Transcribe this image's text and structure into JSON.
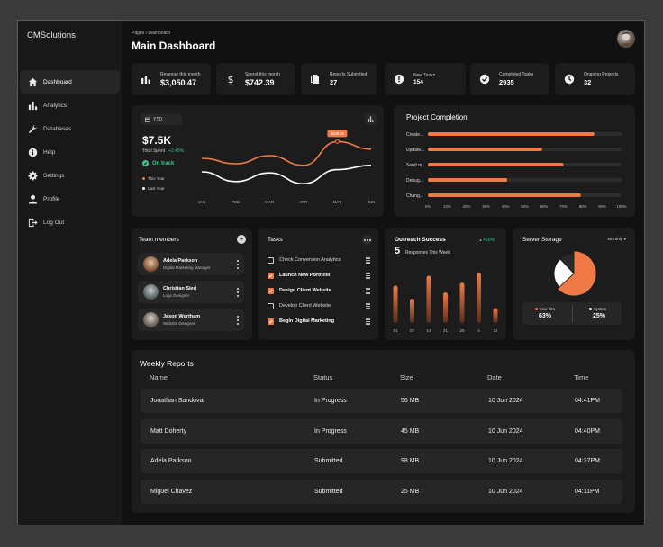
{
  "brand": "CMSolutions",
  "breadcrumb": "Pages / Dashboard",
  "page_title": "Main Dashboard",
  "nav": [
    {
      "label": "Dashboard",
      "icon": "home-icon"
    },
    {
      "label": "Analytics",
      "icon": "bar-chart-icon"
    },
    {
      "label": "Databases",
      "icon": "wrench-icon"
    },
    {
      "label": "Help",
      "icon": "info-icon"
    },
    {
      "label": "Settings",
      "icon": "gear-icon"
    },
    {
      "label": "Profile",
      "icon": "user-icon"
    },
    {
      "label": "Log Out",
      "icon": "logout-icon"
    }
  ],
  "stats": [
    {
      "label": "Revenue this month",
      "value": "$3,050.47",
      "icon": "bar-chart-icon"
    },
    {
      "label": "Spend this month",
      "value": "$742.39",
      "icon": "dollar-icon"
    },
    {
      "label": "Reports Submitted",
      "value": "27",
      "icon": "document-icon"
    },
    {
      "label": "New Tasks",
      "value": "154",
      "icon": "alert-icon"
    },
    {
      "label": "Completed Tasks",
      "value": "2935",
      "icon": "check-circle-icon"
    },
    {
      "label": "Ongoing Projects",
      "value": "32",
      "icon": "clock-icon"
    }
  ],
  "spend_chart": {
    "period": "YTD",
    "value": "$7.5K",
    "label": "Total Spent",
    "change": "+2.45%",
    "status": "On track",
    "legend": [
      "This Year",
      "Last Year"
    ],
    "tooltip": "$108.00",
    "colors": {
      "this_year": "#f07a47",
      "last_year": "#ffffff"
    }
  },
  "chart_data": [
    {
      "type": "line",
      "title": "",
      "categories": [
        "JAN",
        "FEB",
        "MAR",
        "APR",
        "MAY",
        "JUN"
      ],
      "series": [
        {
          "name": "This Year",
          "values": [
            55,
            45,
            60,
            42,
            86,
            72
          ]
        },
        {
          "name": "Last Year",
          "values": [
            30,
            12,
            28,
            8,
            34,
            42
          ]
        }
      ],
      "ylim": [
        0,
        100
      ]
    },
    {
      "type": "bar",
      "title": "Project Completion",
      "categories": [
        "Create...",
        "Update...",
        "Send m...",
        "Debug...",
        "Chang..."
      ],
      "values": [
        86,
        59,
        70,
        41,
        79
      ],
      "xlim": [
        0,
        100
      ],
      "xticks": [
        "0%",
        "10%",
        "20%",
        "30%",
        "40%",
        "50%",
        "60%",
        "70%",
        "80%",
        "90%",
        "100%"
      ]
    },
    {
      "type": "bar",
      "title": "Outreach Success",
      "summary_value": "5",
      "summary_label": "Responses This Week",
      "change": "+20%",
      "categories": [
        "01",
        "07",
        "14",
        "21",
        "28",
        "4",
        "11"
      ],
      "values": [
        6.5,
        4.2,
        8.2,
        5.3,
        7.0,
        8.7,
        2.6
      ],
      "ylim": [
        0,
        10
      ]
    },
    {
      "type": "pie",
      "title": "Server Storage",
      "filter": "Monthly",
      "slices": [
        {
          "label": "Your files",
          "value": 63,
          "display": "63%",
          "color": "#f07a47"
        },
        {
          "label": "System",
          "value": 25,
          "display": "25%",
          "color": "#ffffff"
        },
        {
          "label": "Other",
          "value": 12,
          "color": "#2a2a2a"
        }
      ]
    }
  ],
  "team": {
    "title": "Team members",
    "members": [
      {
        "name": "Adela Parkson",
        "role": "Digital Marketing Manager"
      },
      {
        "name": "Christian Sied",
        "role": "Logo Designer"
      },
      {
        "name": "Jason Wortham",
        "role": "Website Designer"
      }
    ]
  },
  "tasks": {
    "title": "Tasks",
    "items": [
      {
        "label": "Check Conversion Analytics",
        "done": false
      },
      {
        "label": "Launch New Portfolio",
        "done": true
      },
      {
        "label": "Design Client Website",
        "done": true
      },
      {
        "label": "Develop Client Website",
        "done": false
      },
      {
        "label": "Begin Digital Marketing",
        "done": true
      }
    ]
  },
  "reports": {
    "title": "Weekly Reports",
    "columns": [
      "Name",
      "Status",
      "Size",
      "Date",
      "Time"
    ],
    "rows": [
      [
        "Jonathan Sandoval",
        "In Progress",
        "56 MB",
        "10 Jun 2024",
        "04:41PM"
      ],
      [
        "Matt Doherty",
        "In Progress",
        "45 MB",
        "10 Jun 2024",
        "04:40PM"
      ],
      [
        "Adela Parkson",
        "Submitted",
        "98 MB",
        "10 Jun 2024",
        "04:37PM"
      ],
      [
        "Miguel Chavez",
        "Submitted",
        "25 MB",
        "10 Jun 2024",
        "04:11PM"
      ]
    ]
  },
  "accent": "#f07a47"
}
